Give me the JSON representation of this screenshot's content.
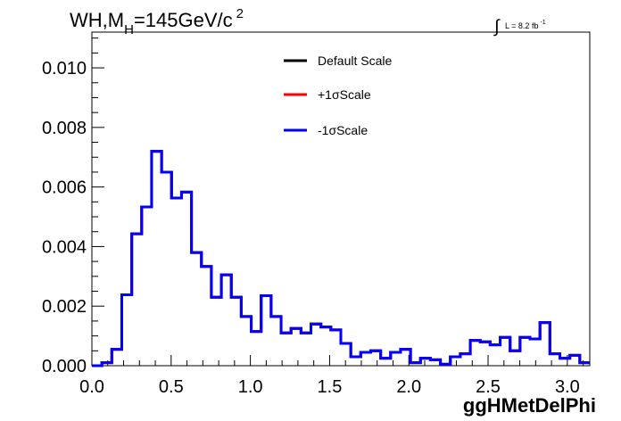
{
  "title": {
    "main": "WH,M",
    "sub": "H",
    "value": "=145GeV/c",
    "sup": "2"
  },
  "lumi": {
    "text": "L = 8.2 fb",
    "sup": "-1"
  },
  "chart_data": {
    "type": "histogram",
    "xlabel": "ggHMetDelPhi",
    "ylabel": "",
    "xlim": [
      0.0,
      3.1416
    ],
    "ylim": [
      0.0,
      0.0112
    ],
    "x_ticks": [
      0.0,
      0.5,
      1.0,
      1.5,
      2.0,
      2.5,
      3.0
    ],
    "x_tick_labels": [
      "0.0",
      "0.5",
      "1.0",
      "1.5",
      "2.0",
      "2.5",
      "3.0"
    ],
    "y_ticks": [
      0.0,
      0.002,
      0.004,
      0.006,
      0.008,
      0.01
    ],
    "y_tick_labels": [
      "0.000",
      "0.002",
      "0.004",
      "0.006",
      "0.008",
      "0.010"
    ],
    "grid": false,
    "legend_position": "top-right",
    "bins": 50,
    "bin_width": 0.06283,
    "series": [
      {
        "name": "Default Scale",
        "color": "#000000",
        "values": [
          0.0,
          0.0001,
          0.00055,
          0.00238,
          0.00443,
          0.00533,
          0.0072,
          0.0065,
          0.00563,
          0.00583,
          0.0038,
          0.00333,
          0.0023,
          0.00305,
          0.0023,
          0.00165,
          0.00115,
          0.00235,
          0.00165,
          0.0011,
          0.00125,
          0.0011,
          0.0014,
          0.0013,
          0.0012,
          0.00075,
          0.0003,
          0.00045,
          0.0005,
          0.00025,
          0.00045,
          0.00055,
          0.0001,
          0.00025,
          0.0002,
          5e-05,
          0.0003,
          0.0004,
          0.00085,
          0.0008,
          0.0007,
          0.00095,
          0.0005,
          0.00095,
          0.0009,
          0.00145,
          0.0004,
          0.00025,
          0.00035,
          0.0001
        ]
      },
      {
        "name": "+1σScale",
        "color": "#ff0000",
        "values": [
          0.0,
          0.0001,
          0.00055,
          0.00238,
          0.00443,
          0.00533,
          0.0072,
          0.0065,
          0.00563,
          0.00583,
          0.0038,
          0.00333,
          0.0023,
          0.00305,
          0.0023,
          0.00165,
          0.00115,
          0.00235,
          0.00165,
          0.0011,
          0.00125,
          0.0011,
          0.0014,
          0.0013,
          0.0012,
          0.00075,
          0.0003,
          0.00045,
          0.0005,
          0.00025,
          0.00045,
          0.00055,
          0.0001,
          0.00025,
          0.0002,
          5e-05,
          0.0003,
          0.0004,
          0.00085,
          0.0008,
          0.0007,
          0.00095,
          0.0005,
          0.00095,
          0.0009,
          0.00145,
          0.0004,
          0.00025,
          0.00035,
          0.0001
        ]
      },
      {
        "name": "-1σScale",
        "color": "#0000ff",
        "values": [
          0.0,
          0.0001,
          0.00055,
          0.00238,
          0.00443,
          0.00533,
          0.0072,
          0.0065,
          0.00563,
          0.00583,
          0.0038,
          0.00333,
          0.0023,
          0.00305,
          0.0023,
          0.00165,
          0.00115,
          0.00235,
          0.00165,
          0.0011,
          0.00125,
          0.0011,
          0.0014,
          0.0013,
          0.0012,
          0.00075,
          0.0003,
          0.00045,
          0.0005,
          0.00025,
          0.00045,
          0.00055,
          0.0001,
          0.00025,
          0.0002,
          5e-05,
          0.0003,
          0.0004,
          0.00085,
          0.0008,
          0.0007,
          0.00095,
          0.0005,
          0.00095,
          0.0009,
          0.00145,
          0.0004,
          0.00025,
          0.00035,
          0.0001
        ]
      }
    ]
  }
}
